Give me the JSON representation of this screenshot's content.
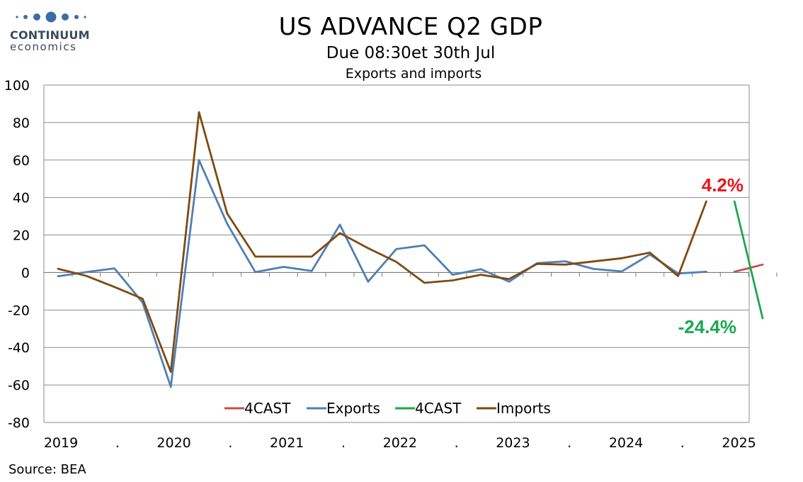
{
  "header": {
    "logo_word": "CONTINUUM",
    "logo_sub": "economics",
    "title": "US ADVANCE Q2  GDP",
    "subtitle": "Due 08:30et 30th Jul",
    "subsubtitle": "Exports and imports"
  },
  "footer": {
    "source": "Source: BEA"
  },
  "colors": {
    "exports": "#4f7fb5",
    "imports": "#7f4a10",
    "forecast_red": "#c0504d",
    "forecast_green": "#1aa84f",
    "anno_red": "#e8161b",
    "anno_green": "#1aa84f",
    "grid": "#8c8c8c",
    "logo": "#3a6ea5"
  },
  "chart_data": {
    "type": "line",
    "ylim": [
      -80,
      100
    ],
    "yticks": [
      100,
      80,
      60,
      40,
      20,
      0,
      -20,
      -40,
      -60,
      -80
    ],
    "grid": true,
    "legend_position": "bottom-center",
    "x_tick_labels": [
      "2019",
      ".",
      "2020",
      ".",
      "2021",
      ".",
      "2022",
      ".",
      "2023",
      ".",
      "2024",
      ".",
      "2025"
    ],
    "x": [
      "2019Q1",
      "2019Q2",
      "2019Q3",
      "2019Q4",
      "2020Q1",
      "2020Q2",
      "2020Q3",
      "2020Q4",
      "2021Q1",
      "2021Q2",
      "2021Q3",
      "2021Q4",
      "2022Q1",
      "2022Q2",
      "2022Q3",
      "2022Q4",
      "2023Q1",
      "2023Q2",
      "2023Q3",
      "2023Q4",
      "2024Q1",
      "2024Q2",
      "2024Q3",
      "2024Q4",
      "2025Q1",
      "2025Q2"
    ],
    "series": [
      {
        "name": "4CAST",
        "key": "forecast_exports",
        "color_key": "forecast_red",
        "points": [
          [
            "2025Q1",
            0.4
          ],
          [
            "2025Q2",
            4.2
          ]
        ]
      },
      {
        "name": "Exports",
        "key": "exports",
        "color_key": "exports",
        "points": [
          [
            "2019Q1",
            -2.0
          ],
          [
            "2019Q2",
            0.2
          ],
          [
            "2019Q3",
            2.2
          ],
          [
            "2019Q4",
            -16.0
          ],
          [
            "2020Q1",
            -61.0
          ],
          [
            "2020Q2",
            60.0
          ],
          [
            "2020Q3",
            26.0
          ],
          [
            "2020Q4",
            0.2
          ],
          [
            "2021Q1",
            3.0
          ],
          [
            "2021Q2",
            0.8
          ],
          [
            "2021Q3",
            25.5
          ],
          [
            "2021Q4",
            -4.9
          ],
          [
            "2022Q1",
            12.5
          ],
          [
            "2022Q2",
            14.5
          ],
          [
            "2022Q3",
            -1.2
          ],
          [
            "2022Q4",
            1.8
          ],
          [
            "2023Q1",
            -4.9
          ],
          [
            "2023Q2",
            5.0
          ],
          [
            "2023Q3",
            6.0
          ],
          [
            "2023Q4",
            1.9
          ],
          [
            "2024Q1",
            0.6
          ],
          [
            "2024Q2",
            9.6
          ],
          [
            "2024Q3",
            -0.5
          ],
          [
            "2024Q4",
            0.4
          ]
        ]
      },
      {
        "name": "4CAST",
        "key": "forecast_imports",
        "color_key": "forecast_green",
        "points": [
          [
            "2025Q1",
            37.9
          ],
          [
            "2025Q2",
            -24.4
          ]
        ]
      },
      {
        "name": "Imports",
        "key": "imports",
        "color_key": "imports",
        "points": [
          [
            "2019Q1",
            2.0
          ],
          [
            "2019Q2",
            -1.8
          ],
          [
            "2019Q3",
            -7.7
          ],
          [
            "2019Q4",
            -14.0
          ],
          [
            "2020Q1",
            -53.0
          ],
          [
            "2020Q2",
            85.5
          ],
          [
            "2020Q3",
            31.5
          ],
          [
            "2020Q4",
            8.5
          ],
          [
            "2021Q1",
            8.5
          ],
          [
            "2021Q2",
            8.5
          ],
          [
            "2021Q3",
            21.0
          ],
          [
            "2021Q4",
            13.0
          ],
          [
            "2022Q1",
            5.7
          ],
          [
            "2022Q2",
            -5.5
          ],
          [
            "2022Q3",
            -4.2
          ],
          [
            "2022Q4",
            -1.2
          ],
          [
            "2023Q1",
            -3.5
          ],
          [
            "2023Q2",
            4.6
          ],
          [
            "2023Q3",
            4.2
          ],
          [
            "2023Q4",
            5.9
          ],
          [
            "2024Q1",
            7.6
          ],
          [
            "2024Q2",
            10.6
          ],
          [
            "2024Q3",
            -1.9
          ],
          [
            "2024Q4",
            37.9
          ]
        ]
      }
    ],
    "annotations": [
      {
        "text": "4.2%",
        "color_key": "anno_red"
      },
      {
        "text": "-24.4%",
        "color_key": "anno_green"
      }
    ]
  }
}
